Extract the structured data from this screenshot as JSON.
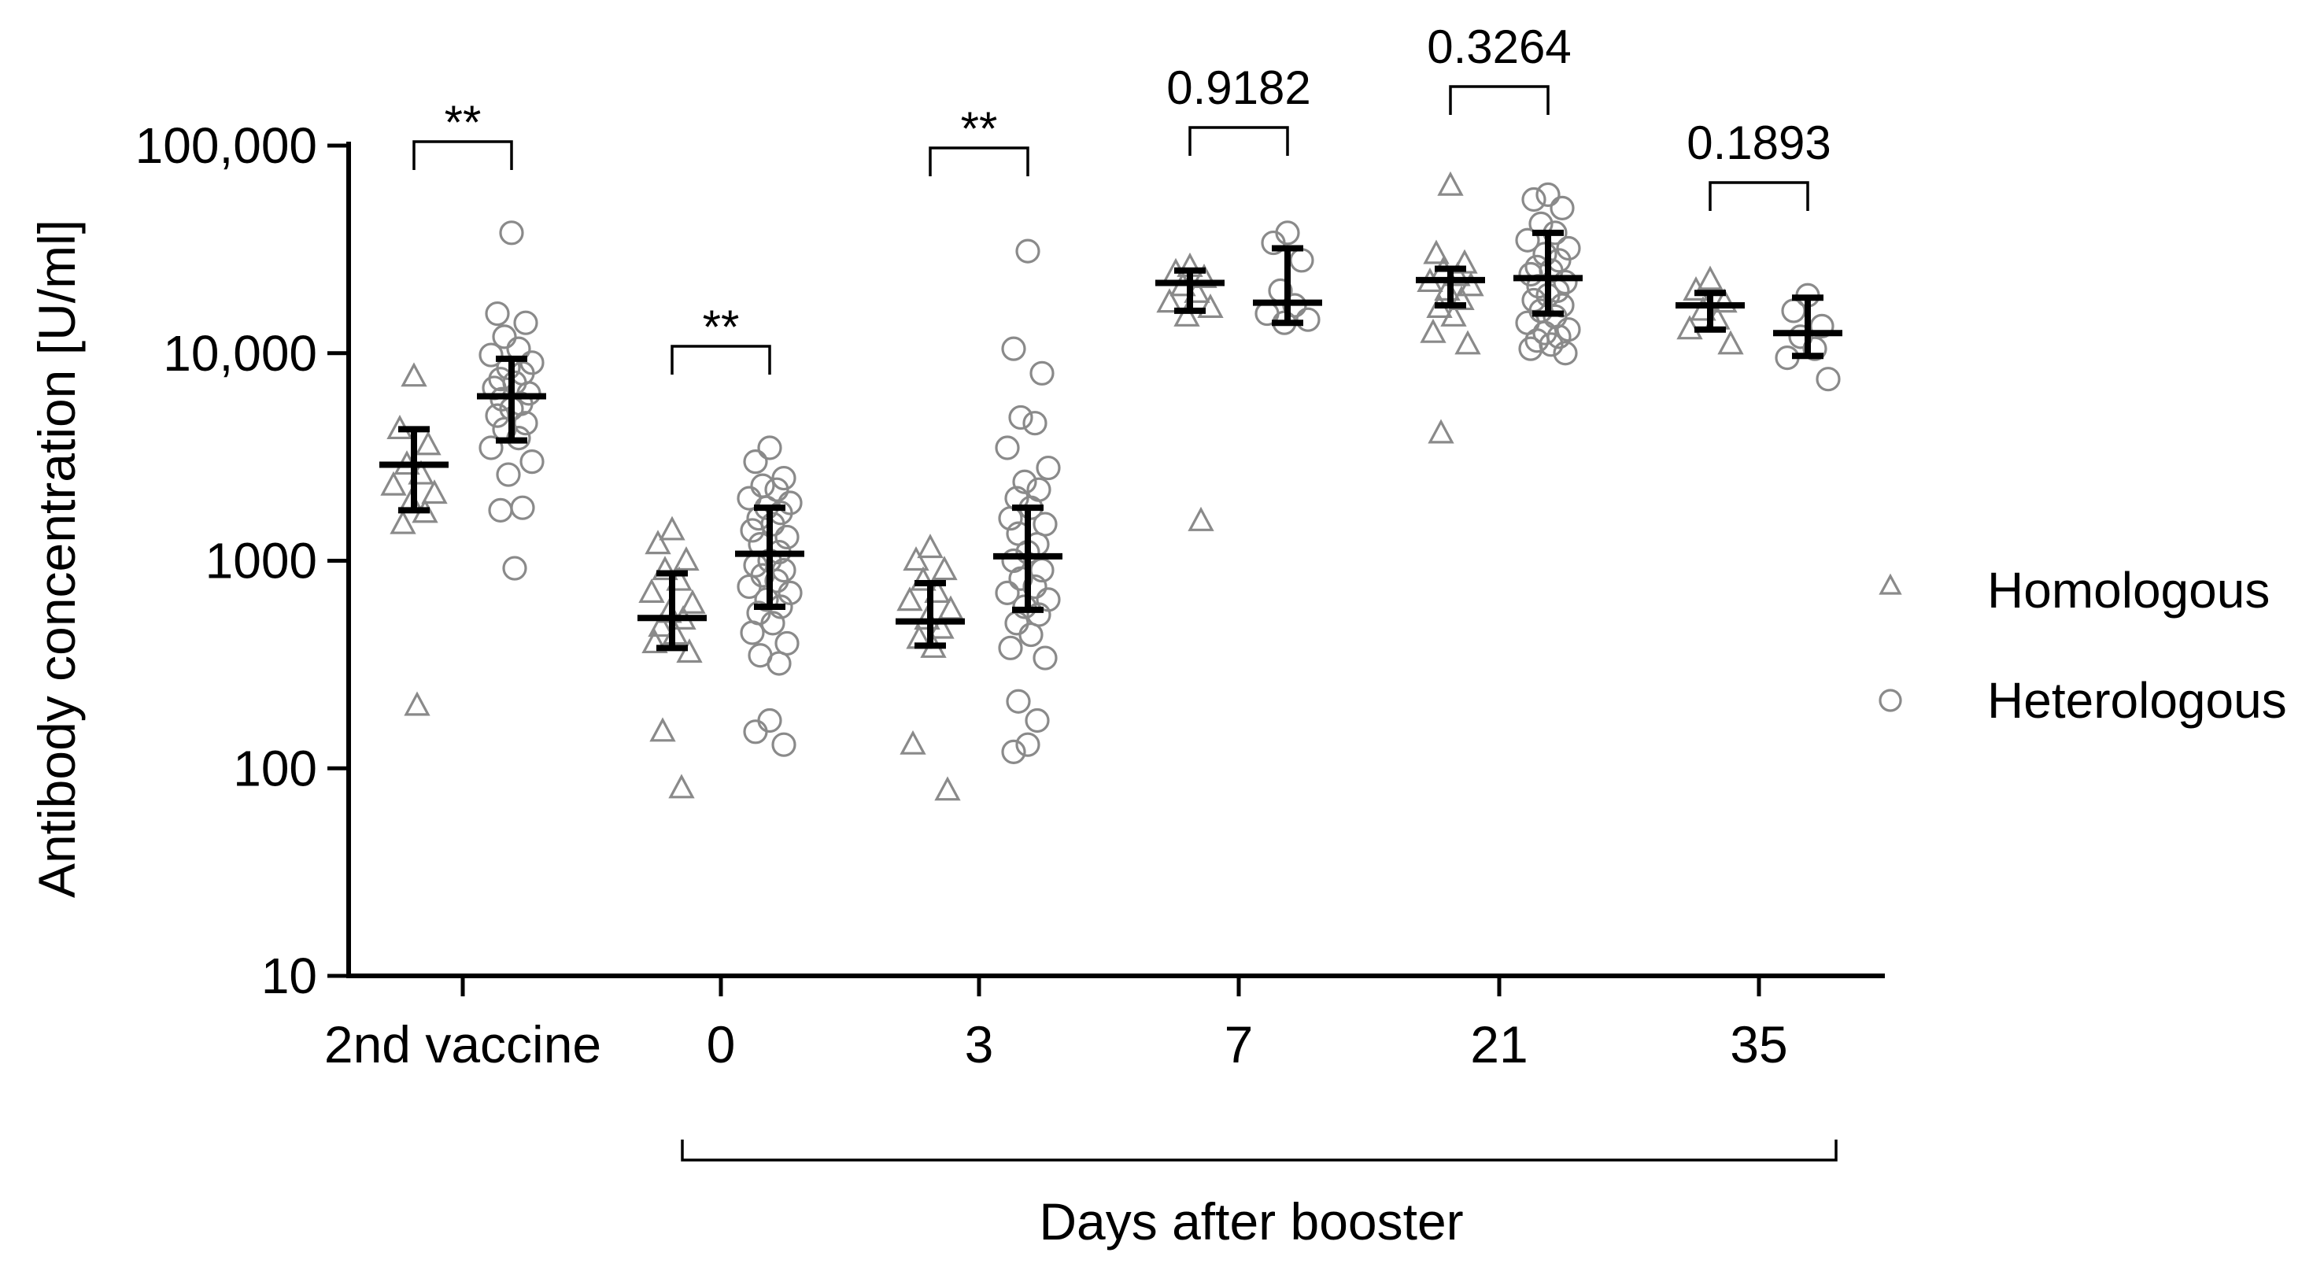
{
  "chart_data": {
    "type": "scatter",
    "scale": "log10",
    "ylabel": "Antibody concentration [U/ml]",
    "xlabel": "Days after booster",
    "ylim": [
      10,
      100000
    ],
    "yticks": [
      10,
      100,
      1000,
      10000,
      100000
    ],
    "ytick_labels": [
      "10",
      "100",
      "1000",
      "10,000",
      "100,000"
    ],
    "categories": [
      "2nd vaccine",
      "0",
      "3",
      "7",
      "21",
      "35"
    ],
    "legend": [
      {
        "name": "Homologous",
        "marker": "triangle"
      },
      {
        "name": "Heterologous",
        "marker": "circle"
      }
    ],
    "colors": {
      "marker": "#8a8a8a",
      "summary": "#000000"
    },
    "groups": [
      {
        "category": "2nd vaccine",
        "homologous": {
          "center": 2900,
          "low": 1750,
          "high": 4300,
          "values": [
            7700,
            4300,
            3600,
            2900,
            2600,
            2300,
            2100,
            1900,
            1700,
            1500,
            200
          ]
        },
        "heterologous": {
          "center": 6200,
          "low": 3800,
          "high": 9400,
          "values": [
            38000,
            15500,
            14000,
            12000,
            10500,
            9800,
            9000,
            8500,
            8000,
            7500,
            7200,
            6800,
            6400,
            6000,
            5700,
            5400,
            5000,
            4600,
            4300,
            3900,
            3500,
            3000,
            2600,
            1800,
            1750,
            920
          ]
        }
      },
      {
        "category": "0",
        "homologous": {
          "center": 530,
          "low": 380,
          "high": 870,
          "values": [
            1400,
            1200,
            1000,
            900,
            800,
            700,
            620,
            560,
            520,
            480,
            440,
            400,
            360,
            150,
            80
          ]
        },
        "heterologous": {
          "center": 1080,
          "low": 600,
          "high": 1800,
          "values": [
            3500,
            3000,
            2500,
            2300,
            2200,
            2000,
            1900,
            1800,
            1700,
            1600,
            1500,
            1400,
            1300,
            1200,
            1100,
            1000,
            950,
            900,
            850,
            800,
            750,
            700,
            650,
            600,
            560,
            500,
            450,
            400,
            350,
            320,
            170,
            150,
            130
          ]
        }
      },
      {
        "category": "3",
        "homologous": {
          "center": 510,
          "low": 390,
          "high": 780,
          "values": [
            1150,
            1000,
            900,
            800,
            700,
            640,
            580,
            520,
            470,
            420,
            380,
            130,
            78
          ]
        },
        "heterologous": {
          "center": 1050,
          "low": 580,
          "high": 1800,
          "values": [
            31000,
            10500,
            8000,
            4900,
            4600,
            3500,
            2800,
            2400,
            2200,
            2000,
            1800,
            1600,
            1500,
            1350,
            1200,
            1100,
            1000,
            900,
            820,
            750,
            700,
            650,
            600,
            550,
            500,
            440,
            380,
            340,
            210,
            170,
            130,
            120
          ]
        }
      },
      {
        "category": "7",
        "homologous": {
          "center": 21800,
          "low": 16000,
          "high": 25000,
          "values": [
            26000,
            24500,
            23000,
            21000,
            19500,
            17500,
            16500,
            15000,
            1550
          ]
        },
        "heterologous": {
          "center": 17500,
          "low": 14000,
          "high": 32000,
          "values": [
            38000,
            34000,
            28000,
            20000,
            17000,
            15500,
            14500,
            14000
          ]
        }
      },
      {
        "category": "21",
        "homologous": {
          "center": 22500,
          "low": 17000,
          "high": 25500,
          "values": [
            64000,
            30000,
            27000,
            25000,
            23500,
            22000,
            21000,
            20000,
            18000,
            16500,
            15000,
            12500,
            11000,
            4100
          ]
        },
        "heterologous": {
          "center": 23000,
          "low": 15500,
          "high": 38000,
          "values": [
            58000,
            55000,
            50000,
            42000,
            38000,
            35000,
            32000,
            30000,
            28000,
            26000,
            25000,
            24000,
            22000,
            21000,
            20000,
            19000,
            18000,
            17000,
            16000,
            15000,
            14000,
            13000,
            12500,
            12000,
            11500,
            11000,
            10500,
            10000
          ]
        }
      },
      {
        "category": "35",
        "homologous": {
          "center": 17000,
          "low": 13000,
          "high": 19500,
          "values": [
            22500,
            20000,
            17500,
            16000,
            14500,
            13000,
            11000
          ]
        },
        "heterologous": {
          "center": 12500,
          "low": 9700,
          "high": 18500,
          "values": [
            19000,
            16000,
            13500,
            12000,
            10500,
            9500,
            7500
          ]
        }
      }
    ],
    "comparisons": [
      {
        "category": "2nd vaccine",
        "label": "**"
      },
      {
        "category": "0",
        "label": "**"
      },
      {
        "category": "3",
        "label": "**"
      },
      {
        "category": "7",
        "label": "0.9182"
      },
      {
        "category": "21",
        "label": "0.3264"
      },
      {
        "category": "35",
        "label": "0.1893"
      }
    ]
  }
}
